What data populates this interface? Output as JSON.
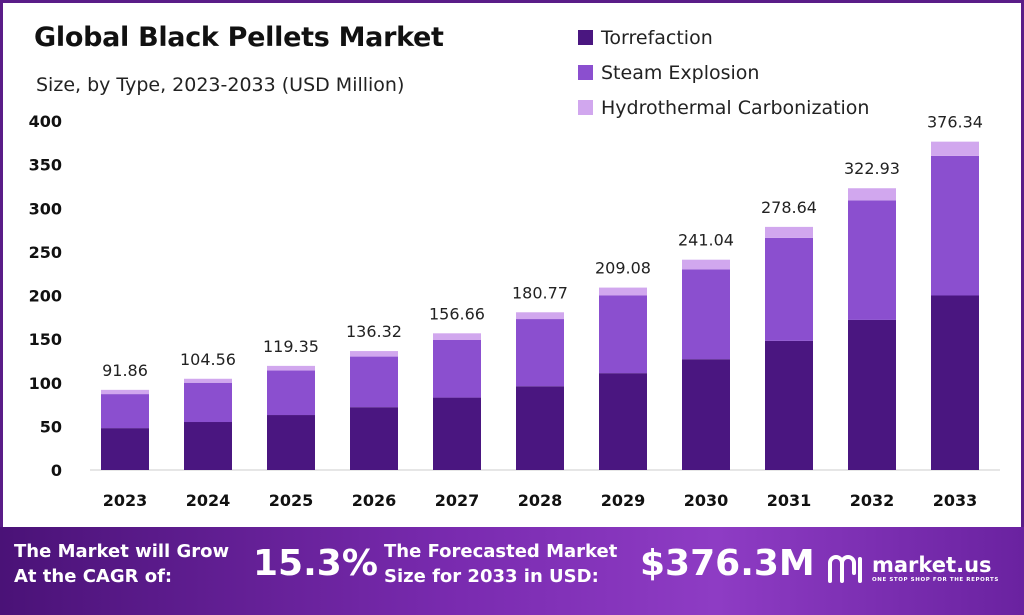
{
  "header": {
    "title": "Global Black Pellets Market",
    "subtitle": "Size, by Type, 2023-2033 (USD Million)"
  },
  "colors": {
    "torrefaction": "#4a1680",
    "steam_explosion": "#8b4fcf",
    "hydrothermal_carbonization": "#d1a7ee",
    "banner": "#6a22a0",
    "frame": "#5a1d88"
  },
  "chart_data": {
    "type": "bar",
    "stacked": true,
    "title": "Global Black Pellets Market",
    "subtitle": "Size, by Type, 2023-2033 (USD Million)",
    "xlabel": "",
    "ylabel": "",
    "ylim": [
      0,
      400
    ],
    "yticks": [
      "0",
      "50",
      "100",
      "150",
      "200",
      "250",
      "300",
      "350",
      "400"
    ],
    "categories": [
      "2023",
      "2024",
      "2025",
      "2026",
      "2027",
      "2028",
      "2029",
      "2030",
      "2031",
      "2032",
      "2033"
    ],
    "series": [
      {
        "name": "Torrefaction",
        "values": [
          48,
          55,
          63,
          72,
          83,
          96,
          111,
          127,
          148,
          172,
          200
        ]
      },
      {
        "name": "Steam Explosion",
        "values": [
          39,
          45,
          51,
          58,
          66,
          77,
          89,
          103,
          118,
          137,
          160
        ]
      },
      {
        "name": "Hydrothermal Carbonization",
        "values": [
          4.86,
          4.56,
          5.35,
          6.32,
          7.66,
          7.77,
          9.08,
          11.04,
          12.64,
          13.93,
          16.34
        ]
      }
    ],
    "totals": [
      "91.86",
      "104.56",
      "119.35",
      "136.32",
      "156.66",
      "180.77",
      "209.08",
      "241.04",
      "278.64",
      "322.93",
      "376.34"
    ],
    "grid": false,
    "legend_position": "top-right"
  },
  "banner": {
    "cagr_line1": "The Market will Grow",
    "cagr_line2": "At the CAGR of:",
    "cagr_value": "15.3%",
    "forecast_line1": "The Forecasted Market",
    "forecast_line2": "Size for 2033 in USD:",
    "forecast_value": "$376.3M",
    "logo_name": "market.us",
    "logo_tagline": "ONE STOP SHOP FOR THE REPORTS"
  }
}
